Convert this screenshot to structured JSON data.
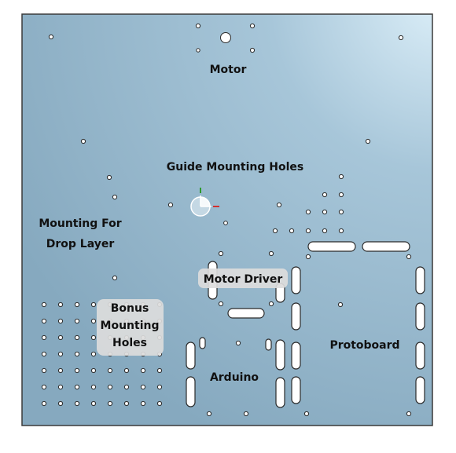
{
  "diagram": {
    "labels": {
      "motor": "Motor",
      "guide": "Guide Mounting Holes",
      "drop_1": "Mounting For",
      "drop_2": "Drop Layer",
      "motor_driver": "Motor Driver",
      "bonus_1": "Bonus",
      "bonus_2": "Mounting",
      "bonus_3": "Holes",
      "arduino": "Arduino",
      "protoboard": "Protoboard"
    },
    "colors": {
      "plate_light": "#dbeef8",
      "plate": "#8fb2c7",
      "plate_dark": "#7fa2b8",
      "border": "#3a3a3a",
      "hole_fill": "#ffffff",
      "hole_stroke": "#2b2b2b",
      "axis_green": "#2e9a2e",
      "axis_red": "#d23030"
    }
  }
}
